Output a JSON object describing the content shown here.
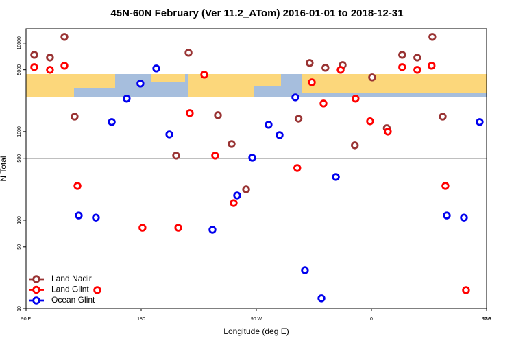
{
  "chart_data": {
    "type": "scatter",
    "title": "45N-60N February (Ver 11.2_ATom)   2016-01-01 to 2018-12-31",
    "xlabel": "Longitude (deg E)",
    "ylabel": "N Total",
    "xlim": [
      90,
      450
    ],
    "ylim": [
      10,
      14500
    ],
    "log_y": true,
    "xticks": [
      {
        "value": 90,
        "label": "90 E"
      },
      180,
      {
        "value": 270,
        "label": "90 W"
      },
      {
        "value": 360,
        "label": "0"
      },
      {
        "value": 450,
        "label": "90 E"
      },
      {
        "value": 540,
        "label": "180"
      }
    ],
    "yticks": [
      10,
      50,
      100,
      500,
      1000,
      5000,
      10000
    ],
    "reference_line": 500,
    "legend": "lower left",
    "series": [
      {
        "name": "Land Nadir",
        "color": "#993333",
        "x": [
          96.4,
          108.7,
          120,
          128,
          217,
          207.3,
          240,
          250.7,
          262,
          303,
          311.7,
          324,
          337.5,
          360.5,
          347,
          372,
          384,
          395.8,
          407.6,
          415.7
        ],
        "values": [
          7380,
          6870,
          11750,
          1480,
          7790,
          536,
          1535,
          725,
          223,
          1400,
          5960,
          5260,
          5650,
          4100,
          700,
          1095,
          7380,
          6870,
          11750,
          1480
        ]
      },
      {
        "name": "Land Glint",
        "color": "#ff0000",
        "x": [
          96.4,
          108.7,
          120,
          130.2,
          145.7,
          181,
          209,
          229.3,
          218,
          237.8,
          252.3,
          302,
          313.4,
          322.5,
          335.9,
          347.6,
          358.9,
          372.8,
          384,
          395.8,
          407,
          417.8,
          433.9
        ],
        "values": [
          5350,
          4990,
          5550,
          244,
          16.2,
          82,
          82,
          4400,
          1620,
          536,
          156,
          388,
          3610,
          2080,
          4990,
          2360,
          1310,
          1000,
          5350,
          4990,
          5550,
          244,
          16.2
        ]
      },
      {
        "name": "Ocean Glint",
        "color": "#0000ee",
        "x": [
          131.2,
          144.6,
          157,
          168.7,
          179.4,
          191.8,
          202,
          235.7,
          255,
          266.8,
          279.6,
          288.2,
          300.5,
          308,
          320.9,
          332.2,
          418.9,
          432.3,
          444.6
        ],
        "values": [
          113,
          107,
          1285,
          2360,
          3490,
          5170,
          931,
          77.8,
          190,
          507,
          1197,
          914,
          2440,
          27.2,
          13.1,
          308,
          113,
          107,
          1285
        ]
      }
    ]
  }
}
